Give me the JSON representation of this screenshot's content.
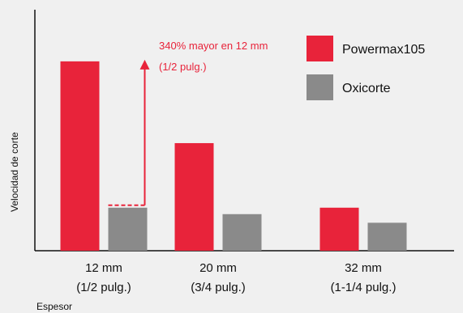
{
  "chart_data": {
    "type": "bar",
    "categories": [
      [
        "12 mm",
        "(1/2 pulg.)"
      ],
      [
        "20 mm",
        "(3/4 pulg.)"
      ],
      [
        "32 mm",
        "(1-1/4 pulg.)"
      ]
    ],
    "series": [
      {
        "name": "Powermax105",
        "values": [
          4.4,
          2.5,
          1.0
        ],
        "color": "#e8233a"
      },
      {
        "name": "Oxicorte",
        "values": [
          1.0,
          0.85,
          0.65
        ],
        "color": "#8a8a8a"
      }
    ],
    "xlabel": "Espesor",
    "ylabel": "Velocidad de corte",
    "ylim": [
      0,
      5.6
    ],
    "legend_position": "top-right",
    "grid": false,
    "annotation": {
      "lines": [
        "340% mayor en 12 mm",
        "(1/2 pulg.)"
      ],
      "color": "#e8233a",
      "category_index": 0
    }
  }
}
